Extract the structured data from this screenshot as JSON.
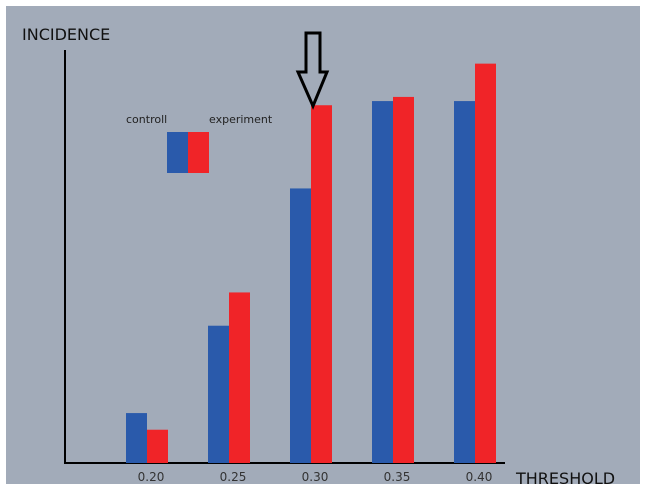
{
  "chart_data": {
    "type": "bar",
    "categories": [
      "0.20",
      "0.25",
      "0.30",
      "0.35",
      "0.40"
    ],
    "series": [
      {
        "name": "controll",
        "values": [
          12,
          33,
          66,
          87,
          87
        ]
      },
      {
        "name": "experiment",
        "values": [
          8,
          41,
          86,
          88,
          96
        ]
      }
    ],
    "xlabel": "THRESHOLD",
    "ylabel": "INCIDENCE",
    "ylim": [
      0,
      100
    ],
    "grid": false,
    "legend": "top-left",
    "annotations": [
      {
        "type": "down-arrow",
        "category": "0.30"
      }
    ]
  },
  "colors": {
    "controll": "#2a5aab",
    "experiment": "#f02428",
    "background": "#a2abb9",
    "axis": "#000000"
  }
}
